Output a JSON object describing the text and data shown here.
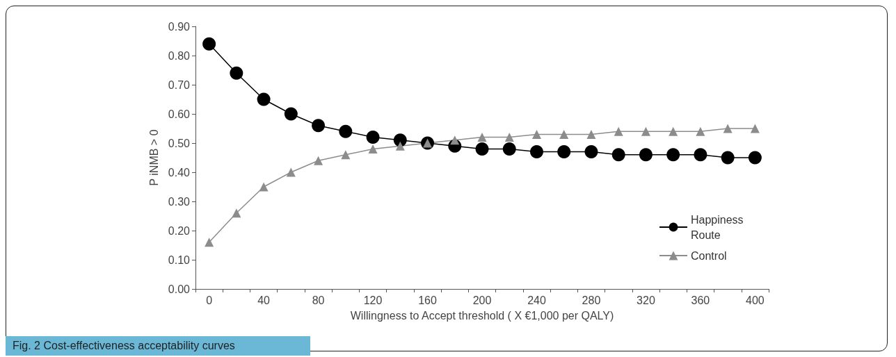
{
  "chart_data": {
    "type": "line",
    "title": "Fig. 2 Cost-effectiveness acceptability curves",
    "xlabel": "Willingness to Accept threshold ( X €1,000 per QALY)",
    "ylabel": "P iNMB > 0",
    "categories": [
      "0",
      null,
      "40",
      null,
      "80",
      null,
      "120",
      null,
      "160",
      null,
      "200",
      null,
      "240",
      null,
      "280",
      null,
      "320",
      null,
      "360",
      null,
      "400"
    ],
    "series": [
      {
        "name": "Happiness Route",
        "color": "#000000",
        "marker": "circle",
        "values": [
          0.84,
          0.74,
          0.65,
          0.6,
          0.56,
          0.54,
          0.52,
          0.51,
          0.5,
          0.49,
          0.48,
          0.48,
          0.47,
          0.47,
          0.47,
          0.46,
          0.46,
          0.46,
          0.46,
          0.45,
          0.45
        ]
      },
      {
        "name": "Control",
        "color": "#8c8c8c",
        "marker": "triangle",
        "values": [
          0.16,
          0.26,
          0.35,
          0.4,
          0.44,
          0.46,
          0.48,
          0.49,
          0.5,
          0.51,
          0.52,
          0.52,
          0.53,
          0.53,
          0.53,
          0.54,
          0.54,
          0.54,
          0.54,
          0.55,
          0.55
        ]
      }
    ],
    "ylim": [
      0,
      0.9
    ],
    "yticks": [
      {
        "value": 0,
        "label": "0.00"
      },
      {
        "value": 0.1,
        "label": "0.10"
      },
      {
        "value": 0.2,
        "label": "0.20"
      },
      {
        "value": 0.3,
        "label": "0.30"
      },
      {
        "value": 0.4,
        "label": "0.40"
      },
      {
        "value": 0.5,
        "label": "0.50"
      },
      {
        "value": 0.6,
        "label": "0.60"
      },
      {
        "value": 0.7,
        "label": "0.70"
      },
      {
        "value": 0.8,
        "label": "0.80"
      },
      {
        "value": 0.9,
        "label": "0.90"
      }
    ],
    "grid": false,
    "legend": "right",
    "line_style": "solid"
  }
}
